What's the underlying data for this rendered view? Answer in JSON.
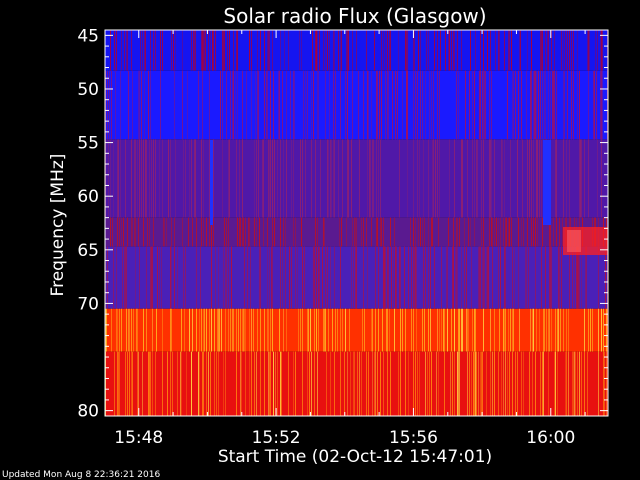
{
  "chart_data": {
    "type": "heatmap",
    "title": "Solar radio Flux (Glasgow)",
    "xlabel": "Start Time (02-Oct-12 15:47:01)",
    "ylabel": "Frequency [MHz]",
    "x_ticks": [
      "15:48",
      "15:52",
      "15:56",
      "16:00"
    ],
    "y_ticks": [
      "45",
      "50",
      "55",
      "60",
      "65",
      "70",
      "80"
    ],
    "y_tick_values": [
      45,
      50,
      55,
      60,
      65,
      70,
      80
    ],
    "xlim": [
      "15:47:01",
      "16:01:40"
    ],
    "ylim": [
      44.5,
      80.5
    ],
    "colors": {
      "background": "#000000",
      "low": "#1a1aff",
      "mid": "#5a1aa0",
      "high": "#ff1a00",
      "peak": "#ffd040"
    },
    "bands": [
      {
        "from_mhz": 44.5,
        "to_mhz": 48.3,
        "base": "#1515f0",
        "streak": "#b00030"
      },
      {
        "from_mhz": 48.3,
        "to_mhz": 54.7,
        "base": "#1a1aff",
        "streak": "#a01060"
      },
      {
        "from_mhz": 54.7,
        "to_mhz": 62.0,
        "base": "#5018a8",
        "streak": "#902070"
      },
      {
        "from_mhz": 62.0,
        "to_mhz": 64.7,
        "base": "#5a1a90",
        "streak": "#c01020"
      },
      {
        "from_mhz": 64.7,
        "to_mhz": 70.5,
        "base": "#4a20b8",
        "streak": "#b01040"
      },
      {
        "from_mhz": 70.5,
        "to_mhz": 74.5,
        "base": "#ff3000",
        "streak": "#ffb020"
      },
      {
        "from_mhz": 74.5,
        "to_mhz": 80.5,
        "base": "#e81010",
        "streak": "#ff8010"
      }
    ],
    "footer": "Updated Mon Aug  8 22:36:21 2016"
  }
}
